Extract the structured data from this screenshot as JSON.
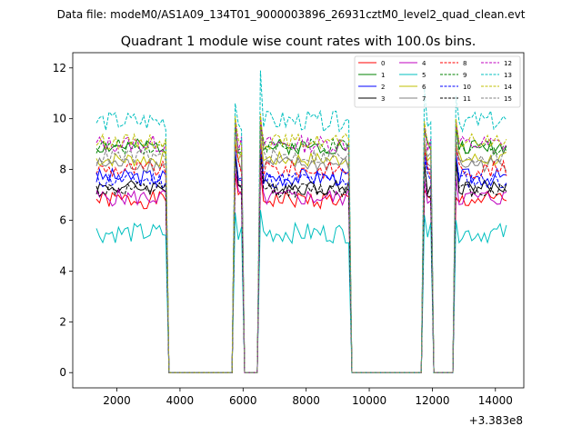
{
  "header": {
    "data_file": "Data file: modeM0/AS1A09_134T01_9000003896_26931cztM0_level2_quad_clean.evt"
  },
  "chart_data": {
    "type": "line",
    "title": "Quadrant 1 module wise count rates with 100.0s bins.",
    "xlabel": "",
    "ylabel": "",
    "x_offset_label": "+3.383e8",
    "xlim": [
      600,
      14900
    ],
    "ylim": [
      -0.6,
      12.6
    ],
    "x_ticks": [
      2000,
      4000,
      6000,
      8000,
      10000,
      12000,
      14000
    ],
    "x_tick_labels": [
      "2000",
      "4000",
      "6000",
      "8000",
      "10000",
      "12000",
      "14000"
    ],
    "y_ticks": [
      0,
      2,
      4,
      6,
      8,
      10,
      12
    ],
    "y_tick_labels": [
      "0",
      "2",
      "4",
      "6",
      "8",
      "10",
      "12"
    ],
    "legend_position": "top-right",
    "legend_columns": 4,
    "segments": [
      {
        "start": 1350,
        "end": 3550,
        "rise_from": null,
        "fall_to": 3650
      },
      {
        "start": 5750,
        "end": 5950,
        "rise_from": 5650,
        "fall_to": 6050
      },
      {
        "start": 6550,
        "end": 9350,
        "rise_from": 6450,
        "fall_to": 9450
      },
      {
        "start": 11750,
        "end": 11950,
        "rise_from": 11650,
        "fall_to": 12050
      },
      {
        "start": 12750,
        "end": 14350,
        "rise_from": 12650,
        "fall_to": null
      }
    ],
    "gaps": [
      {
        "start": 3750,
        "end": 5550
      },
      {
        "start": 6150,
        "end": 6350
      },
      {
        "start": 9550,
        "end": 11550
      },
      {
        "start": 12150,
        "end": 12550
      }
    ],
    "series": [
      {
        "name": "0",
        "color": "#ff0000",
        "dash": "solid",
        "level": 6.8,
        "amp": 0.35,
        "spikes": [
          7.8,
          7.9,
          7.2,
          6.9
        ]
      },
      {
        "name": "1",
        "color": "#008000",
        "dash": "solid",
        "level": 8.9,
        "amp": 0.3,
        "spikes": [
          9.8,
          9.9,
          9.6,
          9.7
        ]
      },
      {
        "name": "2",
        "color": "#0000ff",
        "dash": "solid",
        "level": 7.7,
        "amp": 0.35,
        "spikes": [
          8.8,
          9.0,
          8.6,
          8.7
        ]
      },
      {
        "name": "3",
        "color": "#000000",
        "dash": "solid",
        "level": 7.3,
        "amp": 0.3,
        "spikes": [
          8.6,
          8.7,
          8.3,
          8.4
        ]
      },
      {
        "name": "4",
        "color": "#bf00bf",
        "dash": "solid",
        "level": 6.9,
        "amp": 0.35,
        "spikes": [
          8.0,
          8.1,
          7.6,
          7.7
        ]
      },
      {
        "name": "5",
        "color": "#00bfbf",
        "dash": "solid",
        "level": 5.5,
        "amp": 0.4,
        "spikes": [
          6.3,
          6.4,
          6.2,
          6.0
        ]
      },
      {
        "name": "6",
        "color": "#bfbf00",
        "dash": "solid",
        "level": 8.4,
        "amp": 0.3,
        "spikes": [
          9.2,
          9.3,
          9.1,
          9.0
        ]
      },
      {
        "name": "7",
        "color": "#808080",
        "dash": "solid",
        "level": 8.2,
        "amp": 0.3,
        "spikes": [
          9.0,
          9.1,
          8.9,
          8.8
        ]
      },
      {
        "name": "8",
        "color": "#ff0000",
        "dash": "dashed",
        "level": 8.0,
        "amp": 0.35,
        "spikes": [
          9.0,
          9.0,
          8.8,
          8.9
        ]
      },
      {
        "name": "9",
        "color": "#008000",
        "dash": "dashed",
        "level": 8.9,
        "amp": 0.3,
        "spikes": [
          9.8,
          9.9,
          9.5,
          9.6
        ]
      },
      {
        "name": "10",
        "color": "#0000ff",
        "dash": "dashed",
        "level": 7.6,
        "amp": 0.35,
        "spikes": [
          8.7,
          8.8,
          8.4,
          8.5
        ]
      },
      {
        "name": "11",
        "color": "#000000",
        "dash": "dashed",
        "level": 7.2,
        "amp": 0.3,
        "spikes": [
          8.5,
          8.6,
          8.2,
          8.3
        ]
      },
      {
        "name": "12",
        "color": "#bf00bf",
        "dash": "dashed",
        "level": 9.0,
        "amp": 0.35,
        "spikes": [
          10.0,
          10.1,
          9.8,
          9.9
        ]
      },
      {
        "name": "13",
        "color": "#00bfbf",
        "dash": "dashed",
        "level": 9.9,
        "amp": 0.4,
        "spikes": [
          10.6,
          11.9,
          11.2,
          10.9
        ]
      },
      {
        "name": "14",
        "color": "#bfbf00",
        "dash": "dashed",
        "level": 9.1,
        "amp": 0.3,
        "spikes": [
          10.1,
          10.2,
          9.9,
          10.0
        ]
      },
      {
        "name": "15",
        "color": "#808080",
        "dash": "dashed",
        "level": 8.5,
        "amp": 0.3,
        "spikes": [
          9.4,
          9.5,
          9.2,
          9.3
        ]
      }
    ]
  }
}
